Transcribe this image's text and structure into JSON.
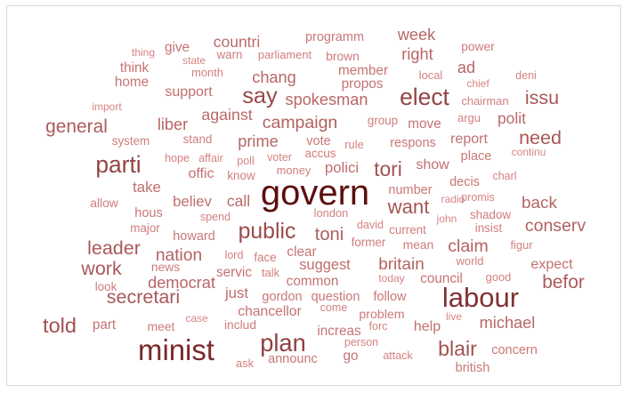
{
  "chart_data": {
    "type": "wordcloud",
    "color_scale": [
      "#d98585",
      "#5c0f0f"
    ],
    "words": [
      {
        "text": "govern",
        "weight": 100
      },
      {
        "text": "minist",
        "weight": 76
      },
      {
        "text": "labour",
        "weight": 70
      },
      {
        "text": "plan",
        "weight": 58
      },
      {
        "text": "parti",
        "weight": 55
      },
      {
        "text": "elect",
        "weight": 55
      },
      {
        "text": "say",
        "weight": 52
      },
      {
        "text": "public",
        "weight": 50
      },
      {
        "text": "told",
        "weight": 46
      },
      {
        "text": "blair",
        "weight": 45
      },
      {
        "text": "tori",
        "weight": 44
      },
      {
        "text": "want",
        "weight": 42
      },
      {
        "text": "leader",
        "weight": 40
      },
      {
        "text": "issu",
        "weight": 40
      },
      {
        "text": "need",
        "weight": 40
      },
      {
        "text": "work",
        "weight": 40
      },
      {
        "text": "secretari",
        "weight": 40
      },
      {
        "text": "general",
        "weight": 38
      },
      {
        "text": "befor",
        "weight": 38
      },
      {
        "text": "toni",
        "weight": 36
      },
      {
        "text": "conserv",
        "weight": 34
      },
      {
        "text": "campaign",
        "weight": 34
      },
      {
        "text": "nation",
        "weight": 33
      },
      {
        "text": "claim",
        "weight": 34
      },
      {
        "text": "britain",
        "weight": 32
      },
      {
        "text": "back",
        "weight": 32
      },
      {
        "text": "prime",
        "weight": 30
      },
      {
        "text": "spokesman",
        "weight": 30
      },
      {
        "text": "liber",
        "weight": 30
      },
      {
        "text": "chang",
        "weight": 30
      },
      {
        "text": "democrat",
        "weight": 30
      },
      {
        "text": "week",
        "weight": 30
      },
      {
        "text": "michael",
        "weight": 30
      },
      {
        "text": "ad",
        "weight": 30
      },
      {
        "text": "right",
        "weight": 30
      },
      {
        "text": "against",
        "weight": 29
      },
      {
        "text": "polit",
        "weight": 28
      },
      {
        "text": "countri",
        "weight": 28
      },
      {
        "text": "call",
        "weight": 28
      },
      {
        "text": "take",
        "weight": 26
      },
      {
        "text": "believ",
        "weight": 26
      },
      {
        "text": "polici",
        "weight": 26
      },
      {
        "text": "just",
        "weight": 26
      },
      {
        "text": "suggest",
        "weight": 25
      },
      {
        "text": "help",
        "weight": 24
      },
      {
        "text": "expect",
        "weight": 24
      },
      {
        "text": "show",
        "weight": 24
      },
      {
        "text": "offic",
        "weight": 24
      },
      {
        "text": "support",
        "weight": 24
      },
      {
        "text": "report",
        "weight": 24
      },
      {
        "text": "chancellor",
        "weight": 23
      },
      {
        "text": "increas",
        "weight": 22
      },
      {
        "text": "member",
        "weight": 22
      },
      {
        "text": "propos",
        "weight": 22
      },
      {
        "text": "move",
        "weight": 22
      },
      {
        "text": "clear",
        "weight": 22
      },
      {
        "text": "servic",
        "weight": 22
      },
      {
        "text": "council",
        "weight": 22
      },
      {
        "text": "home",
        "weight": 22
      },
      {
        "text": "think",
        "weight": 22
      },
      {
        "text": "common",
        "weight": 22
      },
      {
        "text": "give",
        "weight": 22
      },
      {
        "text": "part",
        "weight": 22
      },
      {
        "text": "go",
        "weight": 22
      },
      {
        "text": "howard",
        "weight": 20
      },
      {
        "text": "concern",
        "weight": 20
      },
      {
        "text": "vote",
        "weight": 20
      },
      {
        "text": "number",
        "weight": 20
      },
      {
        "text": "british",
        "weight": 20
      },
      {
        "text": "respons",
        "weight": 20
      },
      {
        "text": "hous",
        "weight": 20
      },
      {
        "text": "announc",
        "weight": 20
      },
      {
        "text": "decis",
        "weight": 20
      },
      {
        "text": "place",
        "weight": 20
      },
      {
        "text": "question",
        "weight": 20
      },
      {
        "text": "follow",
        "weight": 20
      },
      {
        "text": "gordon",
        "weight": 20
      },
      {
        "text": "programm",
        "weight": 20
      },
      {
        "text": "problem",
        "weight": 19
      },
      {
        "text": "mean",
        "weight": 18
      },
      {
        "text": "includ",
        "weight": 18
      },
      {
        "text": "power",
        "weight": 18
      },
      {
        "text": "brown",
        "weight": 18
      },
      {
        "text": "meet",
        "weight": 18
      },
      {
        "text": "allow",
        "weight": 18
      },
      {
        "text": "news",
        "weight": 18
      },
      {
        "text": "shadow",
        "weight": 17
      },
      {
        "text": "group",
        "weight": 17
      },
      {
        "text": "insist",
        "weight": 17
      },
      {
        "text": "major",
        "weight": 17
      },
      {
        "text": "current",
        "weight": 17
      },
      {
        "text": "look",
        "weight": 17
      },
      {
        "text": "former",
        "weight": 17
      },
      {
        "text": "face",
        "weight": 17
      },
      {
        "text": "stand",
        "weight": 17
      },
      {
        "text": "system",
        "weight": 17
      },
      {
        "text": "warn",
        "weight": 17
      },
      {
        "text": "know",
        "weight": 17
      },
      {
        "text": "accus",
        "weight": 17
      },
      {
        "text": "month",
        "weight": 16
      },
      {
        "text": "parliament",
        "weight": 16
      },
      {
        "text": "ask",
        "weight": 16
      },
      {
        "text": "rule",
        "weight": 16
      },
      {
        "text": "argu",
        "weight": 16
      },
      {
        "text": "local",
        "weight": 16
      },
      {
        "text": "money",
        "weight": 16
      },
      {
        "text": "london",
        "weight": 16
      },
      {
        "text": "talk",
        "weight": 16
      },
      {
        "text": "good",
        "weight": 16
      },
      {
        "text": "world",
        "weight": 16
      },
      {
        "text": "figur",
        "weight": 16
      },
      {
        "text": "chairman",
        "weight": 16
      },
      {
        "text": "voter",
        "weight": 15
      },
      {
        "text": "lord",
        "weight": 15
      },
      {
        "text": "person",
        "weight": 15
      },
      {
        "text": "spend",
        "weight": 15
      },
      {
        "text": "david",
        "weight": 15
      },
      {
        "text": "come",
        "weight": 15
      },
      {
        "text": "attack",
        "weight": 15
      },
      {
        "text": "poll",
        "weight": 15
      },
      {
        "text": "hope",
        "weight": 15
      },
      {
        "text": "affair",
        "weight": 15
      },
      {
        "text": "charl",
        "weight": 15
      },
      {
        "text": "forc",
        "weight": 15
      },
      {
        "text": "promis",
        "weight": 15
      },
      {
        "text": "deni",
        "weight": 15
      },
      {
        "text": "import",
        "weight": 14
      },
      {
        "text": "case",
        "weight": 14
      },
      {
        "text": "chief",
        "weight": 14
      },
      {
        "text": "live",
        "weight": 14
      },
      {
        "text": "today",
        "weight": 14
      },
      {
        "text": "state",
        "weight": 14
      },
      {
        "text": "thing",
        "weight": 14
      },
      {
        "text": "radio",
        "weight": 14
      },
      {
        "text": "continu",
        "weight": 14
      },
      {
        "text": "john",
        "weight": 14
      }
    ]
  }
}
